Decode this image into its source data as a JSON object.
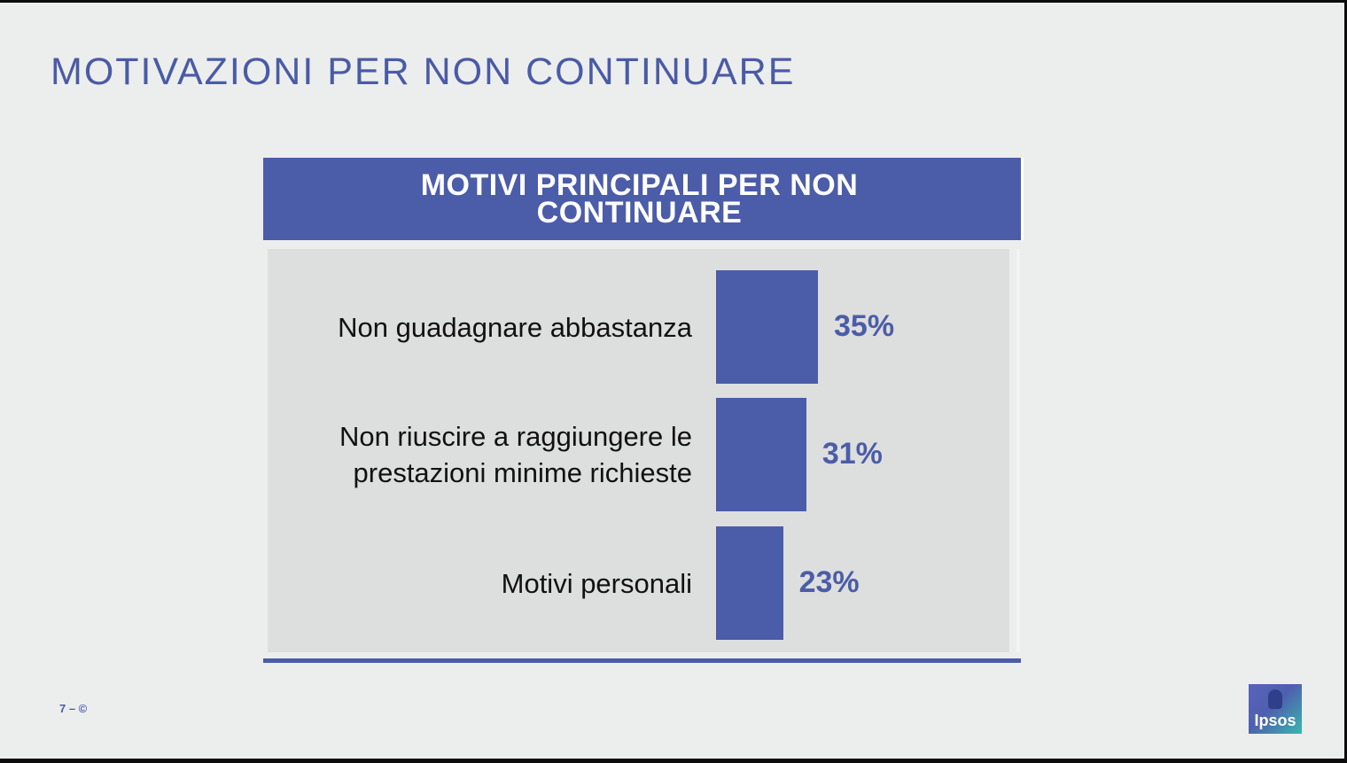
{
  "slide": {
    "title": "MOTIVAZIONI PER NON CONTINUARE",
    "footer": "7 – ©",
    "logo_text": "Ipsos"
  },
  "chart_data": {
    "type": "bar",
    "orientation": "horizontal",
    "title_lines": [
      "MOTIVI PRINCIPALI PER NON",
      "CONTINUARE"
    ],
    "categories": [
      [
        "Non guadagnare abbastanza"
      ],
      [
        "Non riuscire a raggiungere le",
        "prestazioni minime richieste"
      ],
      [
        "Motivi personali"
      ]
    ],
    "values": [
      35,
      31,
      23
    ],
    "value_labels": [
      "35%",
      "31%",
      "23%"
    ],
    "unit": "%",
    "xlim": [
      0,
      100
    ],
    "grid": false,
    "legend": "none",
    "colors": {
      "bar": "#4b5ca8",
      "header": "#4b5ca8",
      "title": "#4a5ba6"
    }
  }
}
